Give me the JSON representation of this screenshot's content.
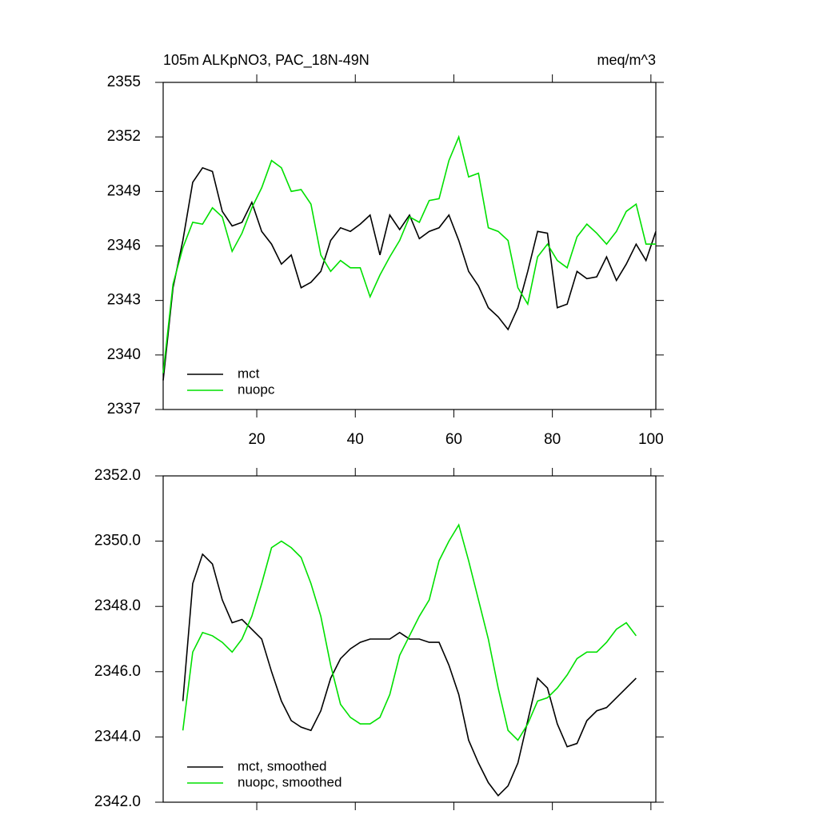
{
  "chart_data": [
    {
      "type": "line",
      "title": "105m ALKpNO3, PAC_18N-49N",
      "subtitle": "meq/m^3",
      "x": [
        1,
        3,
        5,
        7,
        9,
        11,
        13,
        15,
        17,
        19,
        21,
        23,
        25,
        27,
        29,
        31,
        33,
        35,
        37,
        39,
        41,
        43,
        45,
        47,
        49,
        51,
        53,
        55,
        57,
        59,
        61,
        63,
        65,
        67,
        69,
        71,
        73,
        75,
        77,
        79,
        81,
        83,
        85,
        87,
        89,
        91,
        93,
        95,
        97,
        99,
        101
      ],
      "xlim": [
        1,
        101
      ],
      "xticks": [
        20,
        40,
        60,
        80,
        100
      ],
      "ylim": [
        2337,
        2355
      ],
      "yticks": [
        2337,
        2340,
        2343,
        2346,
        2349,
        2352,
        2355
      ],
      "legend": "lower left",
      "series": [
        {
          "name": "mct",
          "color": "#000000",
          "values": [
            2338.6,
            2343.7,
            2346.3,
            2349.5,
            2350.3,
            2350.1,
            2347.9,
            2347.1,
            2347.3,
            2348.4,
            2346.8,
            2346.1,
            2345.0,
            2345.5,
            2343.7,
            2344.0,
            2344.6,
            2346.3,
            2347.0,
            2346.8,
            2347.2,
            2347.7,
            2345.5,
            2347.7,
            2346.9,
            2347.7,
            2346.4,
            2346.8,
            2347.0,
            2347.7,
            2346.3,
            2344.6,
            2343.8,
            2342.6,
            2342.1,
            2341.4,
            2342.6,
            2344.6,
            2346.8,
            2346.7,
            2342.6,
            2342.8,
            2344.6,
            2344.2,
            2344.3,
            2345.4,
            2344.1,
            2345.0,
            2346.1,
            2345.2,
            2346.8
          ]
        },
        {
          "name": "nuopc",
          "color": "#00e000",
          "values": [
            2339.0,
            2343.9,
            2345.9,
            2347.3,
            2347.2,
            2348.1,
            2347.6,
            2345.7,
            2346.7,
            2348.1,
            2349.2,
            2350.7,
            2350.3,
            2349.0,
            2349.1,
            2348.3,
            2345.5,
            2344.6,
            2345.2,
            2344.8,
            2344.8,
            2343.2,
            2344.4,
            2345.4,
            2346.3,
            2347.6,
            2347.3,
            2348.5,
            2348.6,
            2350.7,
            2352.0,
            2349.8,
            2350.0,
            2347.0,
            2346.8,
            2346.3,
            2343.7,
            2342.8,
            2345.4,
            2346.1,
            2345.2,
            2344.8,
            2346.5,
            2347.2,
            2346.7,
            2346.1,
            2346.8,
            2347.9,
            2348.3,
            2346.1,
            2346.1
          ]
        }
      ]
    },
    {
      "type": "line",
      "x": [
        5,
        7,
        9,
        11,
        13,
        15,
        17,
        19,
        21,
        23,
        25,
        27,
        29,
        31,
        33,
        35,
        37,
        39,
        41,
        43,
        45,
        47,
        49,
        51,
        53,
        55,
        57,
        59,
        61,
        63,
        65,
        67,
        69,
        71,
        73,
        75,
        77,
        79,
        81,
        83,
        85,
        87,
        89,
        91,
        93,
        95,
        97
      ],
      "xlim": [
        1,
        101
      ],
      "xticks": [
        20,
        40,
        60,
        80,
        100
      ],
      "ylim": [
        2342,
        2352
      ],
      "yticks": [
        {
          "value": 2342,
          "label": "2342.0"
        },
        {
          "value": 2344,
          "label": "2344.0"
        },
        {
          "value": 2346,
          "label": "2346.0"
        },
        {
          "value": 2348,
          "label": "2348.0"
        },
        {
          "value": 2350,
          "label": "2350.0"
        },
        {
          "value": 2352,
          "label": "2352.0"
        }
      ],
      "legend": "lower left",
      "series": [
        {
          "name": "mct, smoothed",
          "color": "#000000",
          "values": [
            2345.1,
            2348.7,
            2349.6,
            2349.3,
            2348.2,
            2347.5,
            2347.6,
            2347.3,
            2347.0,
            2346.0,
            2345.1,
            2344.5,
            2344.3,
            2344.2,
            2344.8,
            2345.8,
            2346.4,
            2346.7,
            2346.9,
            2347.0,
            2347.0,
            2347.0,
            2347.2,
            2347.0,
            2347.0,
            2346.9,
            2346.9,
            2346.2,
            2345.3,
            2343.9,
            2343.2,
            2342.6,
            2342.2,
            2342.5,
            2343.2,
            2344.5,
            2345.8,
            2345.5,
            2344.4,
            2343.7,
            2343.8,
            2344.5,
            2344.8,
            2344.9,
            2345.2,
            2345.5,
            2345.8
          ]
        },
        {
          "name": "nuopc, smoothed",
          "color": "#00e000",
          "values": [
            2344.2,
            2346.6,
            2347.2,
            2347.1,
            2346.9,
            2346.6,
            2347.0,
            2347.7,
            2348.7,
            2349.8,
            2350.0,
            2349.8,
            2349.5,
            2348.7,
            2347.7,
            2346.2,
            2345.0,
            2344.6,
            2344.4,
            2344.4,
            2344.6,
            2345.3,
            2346.5,
            2347.1,
            2347.7,
            2348.2,
            2349.4,
            2350.0,
            2350.5,
            2349.4,
            2348.2,
            2347.0,
            2345.5,
            2344.2,
            2343.9,
            2344.4,
            2345.1,
            2345.2,
            2345.5,
            2345.9,
            2346.4,
            2346.6,
            2346.6,
            2346.9,
            2347.3,
            2347.5,
            2347.1
          ]
        }
      ]
    }
  ]
}
